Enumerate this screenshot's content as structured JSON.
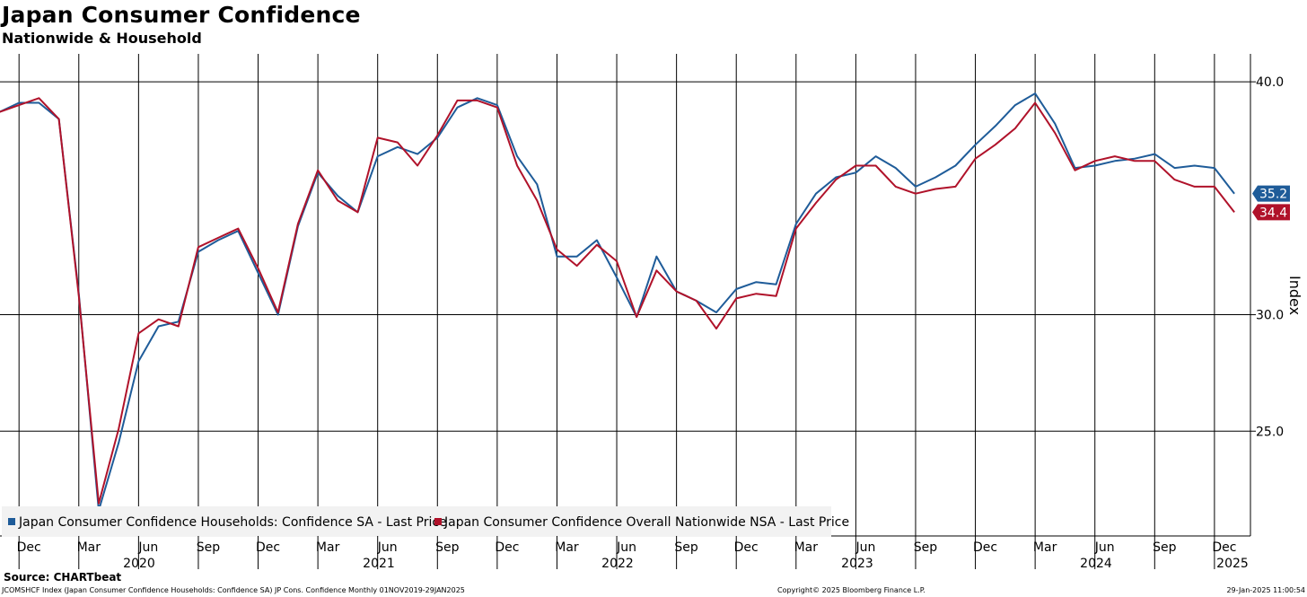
{
  "title": "Japan Consumer Confidence",
  "subtitle": "Nationwide & Household",
  "source": "Source: CHARTbeat",
  "footer": {
    "left": "JCOMSHCF Index (Japan Consumer Confidence Households: Confidence SA) JP Cons. Confidence  Monthly 01NOV2019-29JAN2025",
    "middle": "Copyright© 2025 Bloomberg Finance L.P.",
    "right": "29-Jan-2025 11:00:54"
  },
  "chart_data": {
    "type": "line",
    "ylabel": "Index",
    "ylim": [
      20.5,
      41.2
    ],
    "yticks": [
      "25.0",
      "30.0",
      "40.0"
    ],
    "grid": true,
    "legend_position": "bottom-left",
    "month_labels": [
      "Dec",
      "Mar",
      "Jun",
      "Sep",
      "Dec",
      "Mar",
      "Jun",
      "Sep",
      "Dec",
      "Mar",
      "Jun",
      "Sep",
      "Dec",
      "Mar",
      "Jun",
      "Sep",
      "Dec",
      "Mar",
      "Jun",
      "Sep",
      "Dec"
    ],
    "year_labels": [
      "2020",
      "2021",
      "2022",
      "2023",
      "2024",
      "2025"
    ],
    "x": [
      "2019-11",
      "2019-12",
      "2020-01",
      "2020-02",
      "2020-03",
      "2020-04",
      "2020-05",
      "2020-06",
      "2020-07",
      "2020-08",
      "2020-09",
      "2020-10",
      "2020-11",
      "2020-12",
      "2021-01",
      "2021-02",
      "2021-03",
      "2021-04",
      "2021-05",
      "2021-06",
      "2021-07",
      "2021-08",
      "2021-09",
      "2021-10",
      "2021-11",
      "2021-12",
      "2022-01",
      "2022-02",
      "2022-03",
      "2022-04",
      "2022-05",
      "2022-06",
      "2022-07",
      "2022-08",
      "2022-09",
      "2022-10",
      "2022-11",
      "2022-12",
      "2023-01",
      "2023-02",
      "2023-03",
      "2023-04",
      "2023-05",
      "2023-06",
      "2023-07",
      "2023-08",
      "2023-09",
      "2023-10",
      "2023-11",
      "2023-12",
      "2024-01",
      "2024-02",
      "2024-03",
      "2024-04",
      "2024-05",
      "2024-06",
      "2024-07",
      "2024-08",
      "2024-09",
      "2024-10",
      "2024-11",
      "2024-12",
      "2025-01"
    ],
    "series": [
      {
        "name": "Japan Consumer Confidence Households: Confidence SA - Last Price",
        "color": "#1f5c99",
        "last_label": "35.2",
        "values": [
          38.7,
          39.1,
          39.1,
          38.4,
          30.9,
          21.6,
          24.5,
          28.0,
          29.5,
          29.7,
          32.7,
          33.2,
          33.6,
          31.8,
          30.0,
          33.8,
          36.1,
          35.1,
          34.4,
          36.8,
          37.2,
          36.9,
          37.6,
          38.9,
          39.3,
          39.0,
          36.8,
          35.6,
          32.5,
          32.5,
          33.2,
          31.6,
          29.9,
          32.5,
          31.0,
          30.6,
          30.1,
          31.1,
          31.4,
          31.3,
          33.9,
          35.2,
          35.9,
          36.1,
          36.8,
          36.3,
          35.5,
          35.9,
          36.4,
          37.3,
          38.1,
          39.0,
          39.5,
          38.2,
          36.3,
          36.4,
          36.6,
          36.7,
          36.9,
          36.3,
          36.4,
          36.3,
          35.2
        ]
      },
      {
        "name": "Japan Consumer Confidence Overall Nationwide NSA - Last Price",
        "color": "#b0122a",
        "last_label": "34.4",
        "values": [
          38.7,
          39.0,
          39.3,
          38.4,
          30.8,
          21.9,
          25.1,
          29.2,
          29.8,
          29.5,
          32.9,
          33.3,
          33.7,
          32.0,
          30.1,
          33.9,
          36.2,
          34.9,
          34.4,
          37.6,
          37.4,
          36.4,
          37.7,
          39.2,
          39.2,
          38.9,
          36.4,
          34.9,
          32.8,
          32.1,
          33.0,
          32.3,
          29.9,
          31.9,
          31.0,
          30.6,
          29.4,
          30.7,
          30.9,
          30.8,
          33.7,
          34.8,
          35.8,
          36.4,
          36.4,
          35.5,
          35.2,
          35.4,
          35.5,
          36.7,
          37.3,
          38.0,
          39.1,
          37.8,
          36.2,
          36.6,
          36.8,
          36.6,
          36.6,
          35.8,
          35.5,
          35.5,
          34.4
        ]
      }
    ]
  }
}
